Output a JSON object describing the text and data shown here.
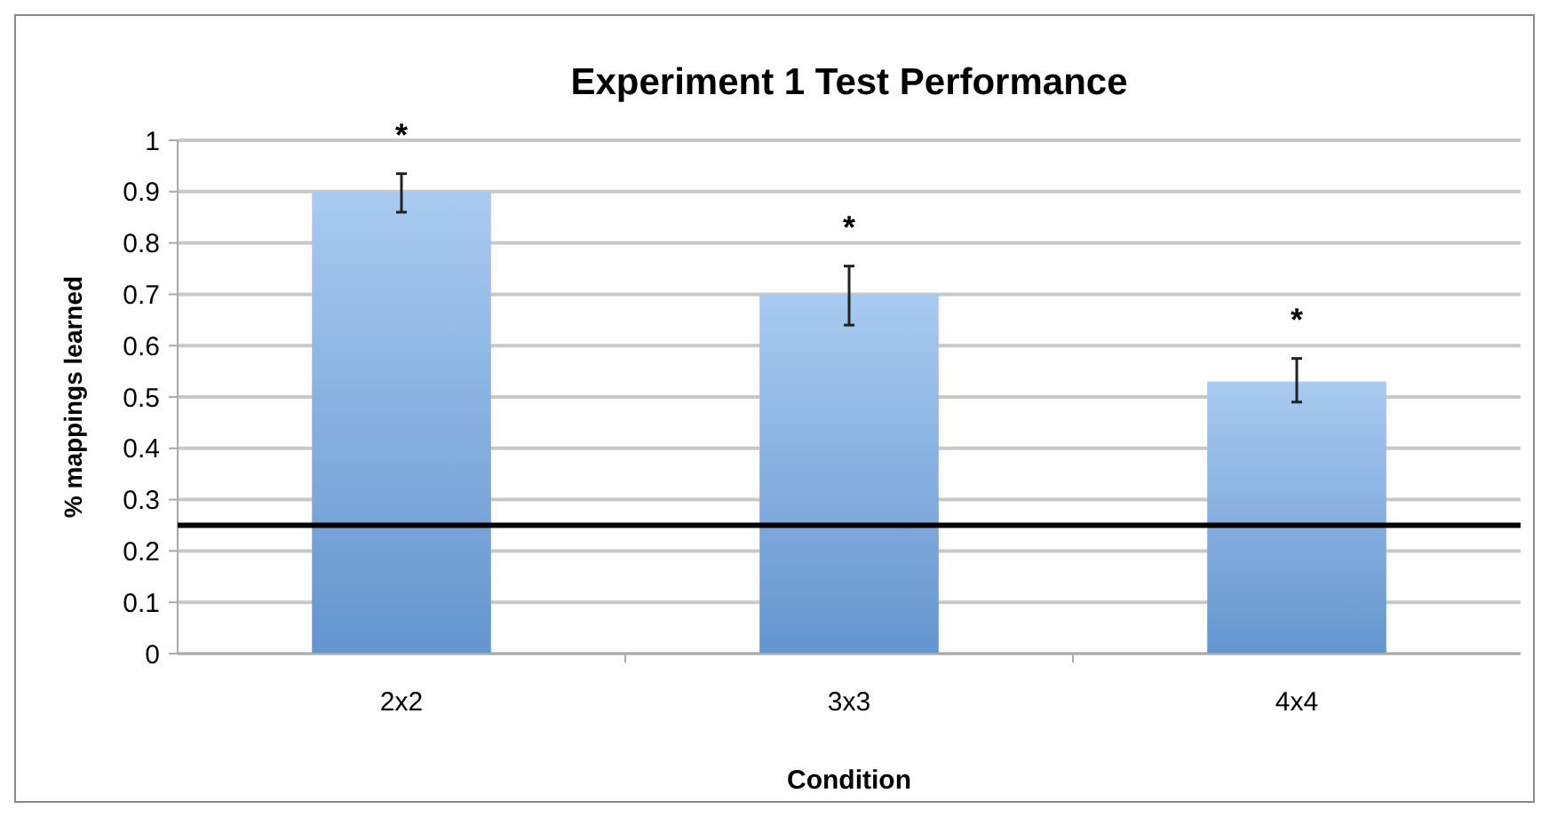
{
  "chart_data": {
    "type": "bar",
    "title": "Experiment 1 Test Performance",
    "xlabel": "Condition",
    "ylabel": "% mappings learned",
    "categories": [
      "2x2",
      "3x3",
      "4x4"
    ],
    "values": [
      0.9,
      0.7,
      0.53
    ],
    "errors": [
      [
        0.86,
        0.935
      ],
      [
        0.64,
        0.755
      ],
      [
        0.49,
        0.575
      ]
    ],
    "color": "#6fa6e6",
    "ylim": [
      0,
      1
    ],
    "yticks": [
      0,
      0.1,
      0.2,
      0.3,
      0.4,
      0.5,
      0.6,
      0.7,
      0.8,
      0.9,
      1
    ],
    "grid": "y",
    "ref_lines": [
      {
        "axis": "y",
        "value": 0.25,
        "color": "#000000"
      }
    ],
    "annotations": [
      "*",
      "*",
      "*"
    ]
  }
}
